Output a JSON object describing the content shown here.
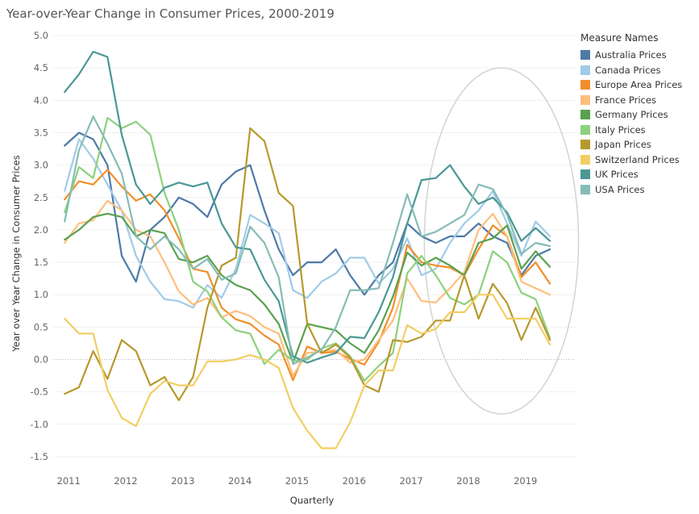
{
  "chart_data": {
    "type": "line",
    "title": "Year-over-Year Change in Consumer Prices, 2000-2019",
    "xlabel": "Quarterly",
    "ylabel": "Year over Year Change in Consumer Prices",
    "ylim": [
      -1.7,
      5.1
    ],
    "xlim": [
      2010.8,
      2019.95
    ],
    "x_ticks": [
      {
        "value": 2011,
        "label": "2011"
      },
      {
        "value": 2012,
        "label": "2012"
      },
      {
        "value": 2013,
        "label": "2013"
      },
      {
        "value": 2014,
        "label": "2014"
      },
      {
        "value": 2015,
        "label": "2015"
      },
      {
        "value": 2016,
        "label": "2016"
      },
      {
        "value": 2017,
        "label": "2017"
      },
      {
        "value": 2018,
        "label": "2018"
      },
      {
        "value": 2019,
        "label": "2019"
      }
    ],
    "y_ticks": [
      {
        "value": 5.0,
        "label": "5.0"
      },
      {
        "value": 4.5,
        "label": "4.5"
      },
      {
        "value": 4.0,
        "label": "4.0"
      },
      {
        "value": 3.5,
        "label": "3.5"
      },
      {
        "value": 3.0,
        "label": "3.0"
      },
      {
        "value": 2.5,
        "label": "2.5"
      },
      {
        "value": 2.0,
        "label": "2.0"
      },
      {
        "value": 1.5,
        "label": "1.5"
      },
      {
        "value": 1.0,
        "label": "1.0"
      },
      {
        "value": 0.5,
        "label": "0.5"
      },
      {
        "value": 0.0,
        "label": "0.0"
      },
      {
        "value": -0.5,
        "label": "-0.5"
      },
      {
        "value": -1.0,
        "label": "-1.0"
      },
      {
        "value": -1.5,
        "label": "-1.5"
      }
    ],
    "legend_title": "Measure Names",
    "legend_position": "right",
    "grid": "horizontal",
    "zero_line": true,
    "annotation": {
      "shape": "ellipse",
      "center_x": 2018.65,
      "center_y": 1.83,
      "x_radius": 1.35,
      "y_radius": 2.67
    },
    "x": [
      2011.0,
      2011.25,
      2011.5,
      2011.75,
      2012.0,
      2012.25,
      2012.5,
      2012.75,
      2013.0,
      2013.25,
      2013.5,
      2013.75,
      2014.0,
      2014.25,
      2014.5,
      2014.75,
      2015.0,
      2015.25,
      2015.5,
      2015.75,
      2016.0,
      2016.25,
      2016.5,
      2016.75,
      2017.0,
      2017.25,
      2017.5,
      2017.75,
      2018.0,
      2018.25,
      2018.5,
      2018.75,
      2019.0,
      2019.25,
      2019.5
    ],
    "series": [
      {
        "name": "Australia Prices",
        "color": "#4e79a7",
        "values": [
          3.3,
          3.5,
          3.4,
          3.0,
          1.6,
          1.2,
          2.0,
          2.2,
          2.5,
          2.4,
          2.2,
          2.7,
          2.9,
          3.0,
          2.3,
          1.7,
          1.3,
          1.5,
          1.5,
          1.7,
          1.3,
          1.0,
          1.3,
          1.5,
          2.1,
          1.9,
          1.8,
          1.9,
          1.9,
          2.1,
          1.9,
          1.8,
          1.3,
          1.6,
          1.7
        ]
      },
      {
        "name": "Canada Prices",
        "color": "#a0cbe8",
        "values": [
          2.6,
          3.4,
          3.1,
          2.7,
          2.3,
          1.6,
          1.2,
          0.93,
          0.9,
          0.8,
          1.15,
          0.95,
          1.4,
          2.23,
          2.1,
          1.95,
          1.07,
          0.95,
          1.2,
          1.33,
          1.57,
          1.57,
          1.17,
          1.4,
          1.87,
          1.3,
          1.4,
          1.8,
          2.1,
          2.3,
          2.6,
          2.1,
          1.6,
          2.13,
          1.9
        ]
      },
      {
        "name": "Europe Area Prices",
        "color": "#f28e2b",
        "values": [
          2.47,
          2.75,
          2.7,
          2.93,
          2.67,
          2.45,
          2.55,
          2.3,
          1.87,
          1.4,
          1.35,
          0.8,
          0.62,
          0.55,
          0.37,
          0.23,
          -0.32,
          0.2,
          0.1,
          0.12,
          0.01,
          -0.08,
          0.27,
          0.8,
          1.77,
          1.5,
          1.45,
          1.42,
          1.3,
          1.7,
          2.07,
          1.9,
          1.27,
          1.5,
          1.17
        ]
      },
      {
        "name": "France Prices",
        "color": "#ffbe7d",
        "values": [
          1.8,
          2.1,
          2.15,
          2.45,
          2.3,
          2.0,
          1.9,
          1.5,
          1.05,
          0.85,
          0.95,
          0.65,
          0.75,
          0.67,
          0.5,
          0.4,
          -0.25,
          0.1,
          0.12,
          0.15,
          -0.05,
          0.0,
          0.3,
          0.6,
          1.25,
          0.9,
          0.88,
          1.1,
          1.35,
          2.0,
          2.25,
          1.9,
          1.2,
          1.1,
          1.0
        ]
      },
      {
        "name": "Germany Prices",
        "color": "#59a14f",
        "values": [
          1.85,
          2.0,
          2.2,
          2.25,
          2.2,
          1.9,
          2.0,
          1.95,
          1.55,
          1.5,
          1.6,
          1.3,
          1.15,
          1.07,
          0.85,
          0.55,
          -0.05,
          0.55,
          0.5,
          0.45,
          0.25,
          0.1,
          0.45,
          0.97,
          1.65,
          1.45,
          1.57,
          1.45,
          1.3,
          1.8,
          1.87,
          2.07,
          1.4,
          1.67,
          1.43
        ]
      },
      {
        "name": "Italy Prices",
        "color": "#8cd17d",
        "values": [
          2.27,
          2.97,
          2.8,
          3.73,
          3.57,
          3.67,
          3.47,
          2.57,
          2.0,
          1.2,
          1.05,
          0.65,
          0.45,
          0.4,
          -0.07,
          0.15,
          -0.02,
          0.0,
          0.17,
          0.25,
          0.05,
          -0.33,
          -0.1,
          0.1,
          1.33,
          1.6,
          1.3,
          0.95,
          0.85,
          1.0,
          1.67,
          1.5,
          1.03,
          0.93,
          0.33
        ]
      },
      {
        "name": "Japan Prices",
        "color": "#b6992d",
        "values": [
          -0.53,
          -0.43,
          0.13,
          -0.3,
          0.3,
          0.13,
          -0.4,
          -0.27,
          -0.63,
          -0.27,
          0.8,
          1.45,
          1.57,
          3.57,
          3.37,
          2.57,
          2.37,
          0.55,
          0.1,
          0.23,
          0.03,
          -0.4,
          -0.5,
          0.3,
          0.27,
          0.35,
          0.6,
          0.6,
          1.3,
          0.63,
          1.17,
          0.87,
          0.3,
          0.8,
          0.3
        ]
      },
      {
        "name": "Switzerland Prices",
        "color": "#f1ce63",
        "values": [
          0.63,
          0.4,
          0.4,
          -0.47,
          -0.9,
          -1.03,
          -0.53,
          -0.33,
          -0.4,
          -0.4,
          -0.03,
          -0.03,
          0.0,
          0.07,
          0.0,
          -0.13,
          -0.75,
          -1.1,
          -1.37,
          -1.37,
          -0.97,
          -0.4,
          -0.17,
          -0.17,
          0.53,
          0.4,
          0.47,
          0.73,
          0.73,
          1.0,
          1.0,
          0.63,
          0.63,
          0.63,
          0.23
        ]
      },
      {
        "name": "UK Prices",
        "color": "#499894",
        "values": [
          4.13,
          4.4,
          4.75,
          4.67,
          3.47,
          2.7,
          2.4,
          2.65,
          2.73,
          2.67,
          2.73,
          2.1,
          1.73,
          1.7,
          1.23,
          0.9,
          0.05,
          -0.05,
          0.03,
          0.1,
          0.35,
          0.33,
          0.73,
          1.27,
          2.1,
          2.77,
          2.8,
          3.0,
          2.67,
          2.4,
          2.5,
          2.27,
          1.83,
          2.03,
          1.83
        ]
      },
      {
        "name": "USA Prices",
        "color": "#86bcb6",
        "values": [
          2.13,
          3.23,
          3.75,
          3.33,
          2.87,
          1.9,
          1.7,
          1.9,
          1.7,
          1.4,
          1.55,
          1.23,
          1.33,
          2.05,
          1.8,
          1.27,
          -0.07,
          0.03,
          0.15,
          0.5,
          1.07,
          1.07,
          1.1,
          1.8,
          2.55,
          1.9,
          1.97,
          2.1,
          2.23,
          2.7,
          2.63,
          2.23,
          1.63,
          1.8,
          1.75
        ]
      }
    ]
  }
}
